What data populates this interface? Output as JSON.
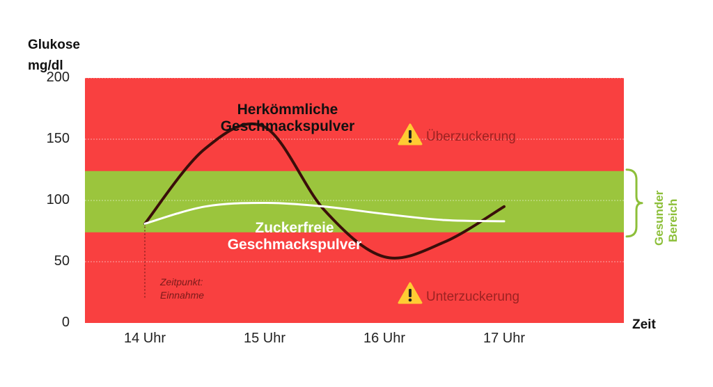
{
  "y_axis_label": "Glukose\nmg/dl",
  "x_axis_label": "Zeit",
  "annotations": {
    "conventional": "Herkömmliche Geschmackspulver",
    "sugarfree": "Zuckerfreie Geschmackspulver",
    "over": "Überzuckerung",
    "under": "Unterzuckerung",
    "intake": "Zeitpunkt:\nEinnahme",
    "healthy_line1": "Gesunder",
    "healthy_line2": "Bereich"
  },
  "colors": {
    "danger_zone": "#f94040",
    "healthy_zone": "#9bc53d",
    "conventional_line": "#3a0e0a",
    "sugarfree_line": "#ffffff",
    "warning": "#ffcc33"
  },
  "chart_data": {
    "type": "line",
    "xlabel": "Zeit",
    "ylabel": "Glukose mg/dl",
    "categories": [
      "14 Uhr",
      "15 Uhr",
      "16 Uhr",
      "17 Uhr"
    ],
    "ylim": [
      0,
      200
    ],
    "yticks": [
      0,
      50,
      100,
      150,
      200
    ],
    "healthy_range": [
      74,
      124
    ],
    "grid": true,
    "series": [
      {
        "name": "Herkömmliche Geschmackspulver",
        "x": [
          14,
          14.5,
          15,
          15.5,
          16,
          16.5,
          17
        ],
        "values": [
          81,
          142,
          160,
          92,
          54,
          66,
          95
        ]
      },
      {
        "name": "Zuckerfreie Geschmackspulver",
        "x": [
          14,
          14.5,
          15,
          15.5,
          16,
          16.5,
          17
        ],
        "values": [
          81,
          95,
          98,
          95,
          89,
          84,
          83
        ]
      }
    ]
  }
}
